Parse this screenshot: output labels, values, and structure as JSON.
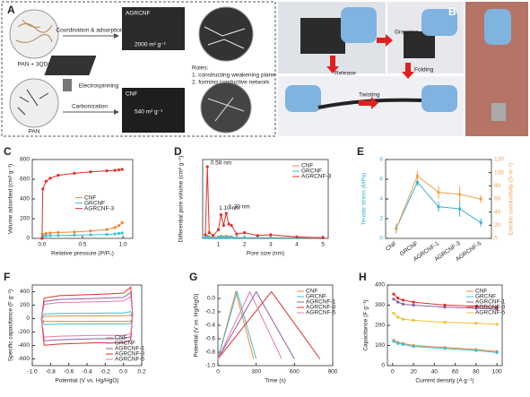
{
  "panel_a": {
    "label": "A",
    "precursor": "PAN + 3QDs",
    "step_1": "Coordination & adsorption",
    "step_2": "Electrospinning",
    "step_3": "Carbonization",
    "product_1": "AGRCNF",
    "surface_1": "2000 m² g⁻¹",
    "product_2": "CNF",
    "surface_2": "540 m² g⁻¹",
    "roles_title": "Roles:",
    "role_1": "1. constructing weakening plane",
    "role_2": "2. forming conductive network",
    "precursor_2": "PAN"
  },
  "panel_b": {
    "label": "B",
    "actions": [
      "Grasping",
      "Release",
      "Folding",
      "Twisting"
    ]
  },
  "chart_data": [
    {
      "type": "line",
      "label": "C",
      "x_label": "Relative pressure (P/P₀)",
      "y_label": "Volume adsorbed (cm³ g⁻¹)",
      "xlim": [
        -0.12,
        1.12
      ],
      "xticks": [
        {
          "value": 0,
          "label": "0.0"
        },
        0.5,
        {
          "value": 1,
          "label": "1.0"
        }
      ],
      "ylim": [
        0,
        800
      ],
      "yticks": [
        0,
        200,
        400,
        600,
        800
      ],
      "legend": "center",
      "markers": true,
      "x": [
        0,
        0.01,
        0.05,
        0.1,
        0.2,
        0.4,
        0.6,
        0.8,
        0.9,
        0.95,
        0.99
      ],
      "series": [
        {
          "name": "CNF",
          "color": "#f0883a",
          "values": [
            0,
            40,
            50,
            55,
            60,
            65,
            75,
            90,
            110,
            130,
            160
          ]
        },
        {
          "name": "GRCNF",
          "color": "#3cc0d8",
          "values": [
            0,
            20,
            25,
            28,
            30,
            33,
            36,
            40,
            45,
            50,
            55
          ]
        },
        {
          "name": "AGRCNF-3",
          "color": "#e0302a",
          "values": [
            0,
            500,
            580,
            610,
            640,
            660,
            675,
            685,
            690,
            695,
            700
          ]
        }
      ]
    },
    {
      "type": "line",
      "label": "D",
      "x_label": "Pore size (nm)",
      "y_label": "Differential pore volume (cm³ g⁻¹)",
      "xlim": [
        0.4,
        5.2
      ],
      "xticks": [
        1,
        2,
        3,
        4,
        5
      ],
      "ylim": [
        0,
        1.1
      ],
      "legend": "upper right",
      "markers": true,
      "annotations": [
        "0.58 nm",
        "1.10 nm",
        "1.30 nm"
      ],
      "x": [
        0.5,
        0.58,
        0.65,
        0.8,
        1.0,
        1.1,
        1.2,
        1.3,
        1.4,
        1.5,
        1.7,
        2.0,
        2.5,
        3.0,
        4.0,
        5.0
      ],
      "series": [
        {
          "name": "CNF",
          "color": "#f0883a",
          "values": [
            0.01,
            0.03,
            0.02,
            0.01,
            0.02,
            0.03,
            0.02,
            0.03,
            0.02,
            0.02,
            0.01,
            0.01,
            0.01,
            0.01,
            0.01,
            0.01
          ]
        },
        {
          "name": "GRCNF",
          "color": "#3cc0d8",
          "values": [
            0.01,
            0.02,
            0.01,
            0.01,
            0.01,
            0.02,
            0.01,
            0.02,
            0.01,
            0.01,
            0.01,
            0.01,
            0.01,
            0.01,
            0.01,
            0.01
          ]
        },
        {
          "name": "AGRCNF-3",
          "color": "#e0302a",
          "values": [
            0.05,
            1.0,
            0.08,
            0.04,
            0.12,
            0.33,
            0.18,
            0.35,
            0.2,
            0.18,
            0.06,
            0.08,
            0.04,
            0.05,
            0.02,
            0.01
          ]
        }
      ]
    },
    {
      "type": "line",
      "label": "E",
      "y_label": "Tensile stress (MPa)",
      "y2_label": "Electric conductivity (S m⁻¹)",
      "categories": [
        "CNF",
        "GRCNF",
        "AGRCNF-1",
        "AGRCNF-3",
        "AGRCNF-5"
      ],
      "ylim": [
        0,
        8
      ],
      "yticks": [
        0,
        2,
        4,
        6,
        8
      ],
      "y2lim": [
        0,
        120
      ],
      "y2ticks": [
        0,
        20,
        40,
        60,
        80,
        100,
        120
      ],
      "markers": true,
      "series": [
        {
          "color": "#3ab0d0",
          "values": [
            1.0,
            5.7,
            3.2,
            3.0,
            1.6
          ],
          "errors": [
            0.5,
            0.4,
            0.5,
            0.8,
            0.4
          ]
        },
        {
          "color": "#f0a050",
          "axis": "y2",
          "values": [
            15,
            95,
            70,
            67,
            60
          ],
          "errors": [
            5,
            8,
            10,
            12,
            6
          ]
        }
      ]
    },
    {
      "type": "line",
      "label": "F",
      "x_label": "Potential (V vs. Hg/HgO)",
      "y_label": "Specific capacitance (F g⁻¹)",
      "xlim": [
        -1.0,
        0.2
      ],
      "xticks": [
        {
          "value": -1,
          "label": "-1.0"
        },
        -0.8,
        -0.6,
        -0.4,
        -0.2,
        {
          "value": 0,
          "label": "0.0"
        },
        0.2
      ],
      "ylim": [
        -700,
        500
      ],
      "yticks": [
        -600,
        -400,
        -200,
        0,
        200,
        400
      ],
      "legend": "lower right",
      "markers": false,
      "x": [
        -0.9,
        -0.87,
        -0.7,
        -0.3,
        0.0,
        0.08,
        0.1,
        0.08,
        0.0,
        -0.3,
        -0.7,
        -0.87,
        -0.9
      ],
      "series": [
        {
          "name": "CNF",
          "color": "#f0883a",
          "values": [
            0,
            34,
            38,
            40,
            42,
            52,
            8,
            -36,
            -40,
            -40,
            -42,
            -44,
            0
          ]
        },
        {
          "name": "GRCNF",
          "color": "#3cc0d8",
          "values": [
            0,
            68,
            76,
            80,
            84,
            104,
            16,
            -72,
            -80,
            -80,
            -84,
            -88,
            0
          ]
        },
        {
          "name": "AGRCNF-1",
          "color": "#8e5fa8",
          "values": [
            0,
            255,
            285,
            300,
            315,
            390,
            60,
            -270,
            -300,
            -300,
            -315,
            -330,
            0
          ]
        },
        {
          "name": "AGRCNF-3",
          "color": "#e0302a",
          "values": [
            0,
            306,
            342,
            360,
            378,
            468,
            72,
            -324,
            -360,
            -360,
            -378,
            -396,
            0
          ]
        },
        {
          "name": "AGRCNF-5",
          "color": "#e57ab0",
          "values": [
            0,
            212,
            238,
            250,
            262,
            325,
            50,
            -225,
            -250,
            -250,
            -262,
            -275,
            0
          ]
        }
      ]
    },
    {
      "type": "line",
      "label": "G",
      "x_label": "Time (s)",
      "y_label": "Potential (V vs. Hg/HgO)",
      "xlim": [
        0,
        900
      ],
      "xticks": [
        0,
        300,
        600,
        900
      ],
      "ylim": [
        -1.0,
        0.2
      ],
      "yticks": [
        {
          "value": -1,
          "label": "-1.0"
        },
        -0.8,
        -0.6,
        -0.4,
        -0.2,
        {
          "value": 0,
          "label": "0.0"
        }
      ],
      "legend": "upper right",
      "markers": false,
      "series": [
        {
          "name": "CNF",
          "color": "#f0883a",
          "x": [
            0,
            140,
            280
          ],
          "values": [
            -0.9,
            0.1,
            -0.9
          ]
        },
        {
          "name": "GRCNF",
          "color": "#3cc0d8",
          "x": [
            0,
            150,
            300
          ],
          "values": [
            -0.9,
            0.1,
            -0.9
          ]
        },
        {
          "name": "AGRCNF-1",
          "color": "#8e5fa8",
          "x": [
            0,
            300,
            600
          ],
          "values": [
            -0.9,
            0.1,
            -0.9
          ]
        },
        {
          "name": "AGRCNF-3",
          "color": "#e0302a",
          "x": [
            0,
            420,
            800
          ],
          "values": [
            -0.9,
            0.1,
            -0.9
          ]
        },
        {
          "name": "AGRCNF-5",
          "color": "#e57ab0",
          "x": [
            0,
            250,
            500
          ],
          "values": [
            -0.9,
            0.1,
            -0.9
          ]
        }
      ]
    },
    {
      "type": "line",
      "label": "H",
      "x_label": "Current density (A g⁻¹)",
      "y_label": "Capacitance (F g⁻¹)",
      "xlim": [
        -5,
        105
      ],
      "xticks": [
        0,
        20,
        40,
        60,
        80,
        100
      ],
      "ylim": [
        0,
        400
      ],
      "yticks": [
        0,
        100,
        200,
        300,
        400
      ],
      "legend": "upper right",
      "markers": true,
      "x": [
        1,
        5,
        10,
        20,
        50,
        80,
        100
      ],
      "series": [
        {
          "name": "CNF",
          "color": "#f0883a",
          "values": [
            125,
            115,
            110,
            100,
            90,
            80,
            70
          ]
        },
        {
          "name": "GRCNF",
          "color": "#3cc0d8",
          "values": [
            120,
            110,
            105,
            95,
            85,
            75,
            65
          ]
        },
        {
          "name": "AGRCNF-1",
          "color": "#8e5fa8",
          "values": [
            330,
            315,
            305,
            300,
            290,
            285,
            280
          ]
        },
        {
          "name": "AGRCNF-3",
          "color": "#e0302a",
          "values": [
            355,
            335,
            325,
            315,
            300,
            295,
            290
          ]
        },
        {
          "name": "AGRCNF-5",
          "color": "#f0c030",
          "values": [
            260,
            240,
            230,
            225,
            215,
            210,
            205
          ]
        }
      ]
    }
  ]
}
